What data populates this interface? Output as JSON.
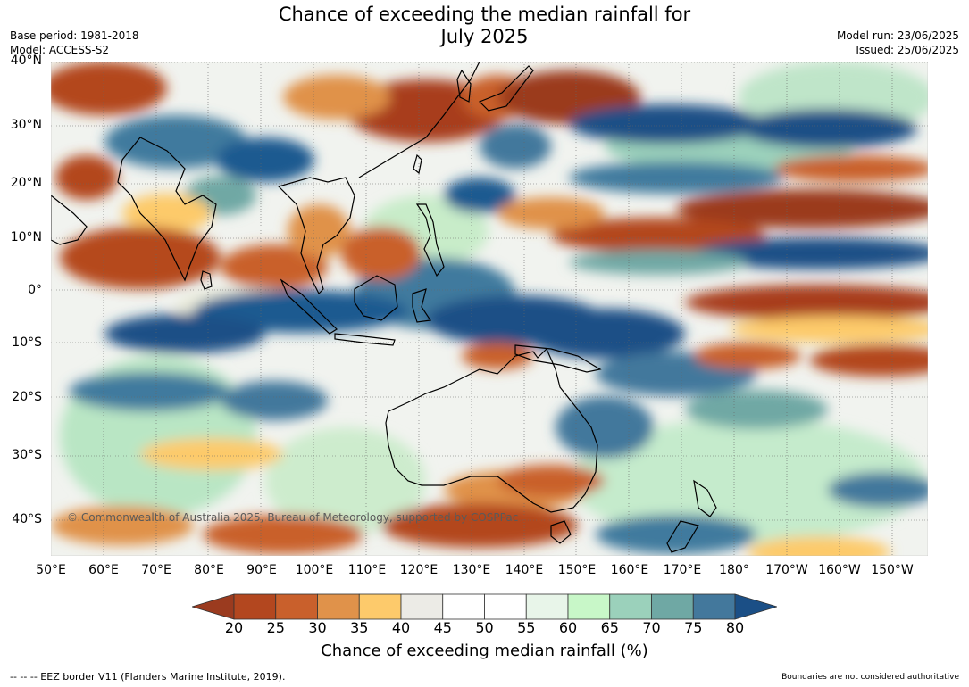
{
  "header": {
    "title_line1": "Chance of exceeding the median rainfall for",
    "title_line2": "July 2025",
    "base_period": "Base period: 1981-2018",
    "model": "Model: ACCESS-S2",
    "model_run": "Model run: 23/06/2025",
    "issued": "Issued: 25/06/2025"
  },
  "map": {
    "copyright": "© Commonwealth of Australia 2025, Bureau of Meteorology, supported by COSPPac",
    "lat_labels": [
      "40°N",
      "30°N",
      "20°N",
      "10°N",
      "0°",
      "10°S",
      "20°S",
      "30°S",
      "40°S"
    ],
    "lon_labels": [
      "50°E",
      "60°E",
      "70°E",
      "80°E",
      "90°E",
      "100°E",
      "110°E",
      "120°E",
      "130°E",
      "140°E",
      "150°E",
      "160°E",
      "170°E",
      "180°",
      "170°W",
      "160°W",
      "150°W"
    ]
  },
  "colorbar": {
    "ticks": [
      "20",
      "25",
      "30",
      "35",
      "40",
      "45",
      "50",
      "55",
      "60",
      "65",
      "70",
      "75",
      "80"
    ],
    "colors": [
      "#b3471f",
      "#c9602c",
      "#e0924a",
      "#fdca6b",
      "#ecebe6",
      "#ffffff",
      "#ffffff",
      "#e8f5e9",
      "#c8f7c8",
      "#9bd1bb",
      "#6fa8a4",
      "#43789c"
    ],
    "under_color": "#9b3b1f",
    "over_color": "#1b4f86",
    "label": "Chance of exceeding median rainfall (%)"
  },
  "footer": {
    "eez_note": "--  --  -- EEZ border V11 (Flanders Marine Institute, 2019).",
    "boundaries_note": "Boundaries are not considered authoritative"
  }
}
